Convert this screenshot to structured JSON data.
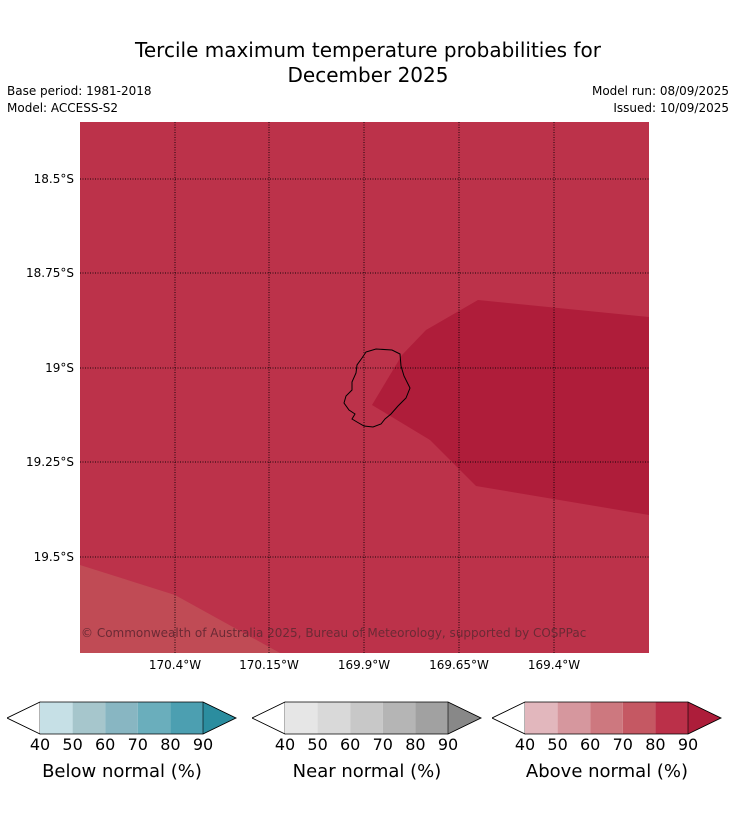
{
  "title_line1": "Tercile maximum temperature probabilities for",
  "title_line2": "December 2025",
  "meta_left": [
    "Base period: 1981-2018",
    "Model: ACCESS-S2"
  ],
  "meta_right": [
    "Model run: 08/09/2025",
    "Issued: 10/09/2025"
  ],
  "map": {
    "lat_labels": [
      "18.5°S",
      "18.75°S",
      "19°S",
      "19.25°S",
      "19.5°S"
    ],
    "lon_labels": [
      "170.4°W",
      "170.15°W",
      "169.9°W",
      "169.65°W",
      "169.4°W"
    ],
    "copyright": "© Commonwealth of Australia 2025, Bureau of Meteorology, supported by COSPPac",
    "colors": {
      "base": "#bc324a",
      "high": "#af1d3a",
      "low": "#c04b55",
      "coast": "#000000"
    }
  },
  "colorbars": [
    {
      "label": "Below normal (%)",
      "ticks": [
        "40",
        "50",
        "60",
        "70",
        "80",
        "90"
      ],
      "colors": [
        "#ffffff",
        "#c6e0e6",
        "#a6c6cc",
        "#88b6c2",
        "#6aaebc",
        "#4c9fb1",
        "#2b8d9f"
      ]
    },
    {
      "label": "Near normal (%)",
      "ticks": [
        "40",
        "50",
        "60",
        "70",
        "80",
        "90"
      ],
      "colors": [
        "#ffffff",
        "#e6e6e6",
        "#d9d9d9",
        "#c8c8c8",
        "#b5b5b5",
        "#a1a1a1",
        "#888888"
      ]
    },
    {
      "label": "Above normal (%)",
      "ticks": [
        "40",
        "50",
        "60",
        "70",
        "80",
        "90"
      ],
      "colors": [
        "#ffffff",
        "#e2b7bd",
        "#d6979e",
        "#cd787f",
        "#c55863",
        "#bb3049",
        "#ad1d3a"
      ]
    }
  ]
}
